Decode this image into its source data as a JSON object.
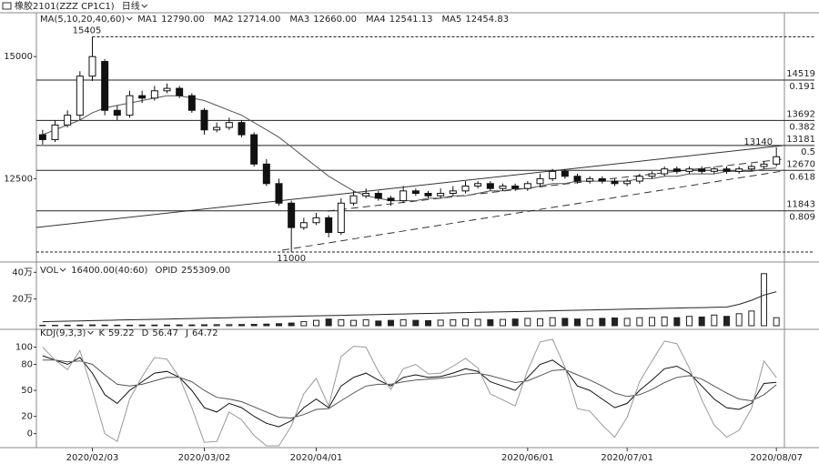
{
  "chart_data": [
    {
      "type": "candlestick",
      "title": "橡胶2101(ZZZ CP1C1)",
      "period": "日线",
      "indicator": "MA(5,10,20,40,60)",
      "readouts": [
        {
          "name": "MA1",
          "value": 12790,
          "label": "12790.00"
        },
        {
          "name": "MA2",
          "value": 12714,
          "label": "12714.00"
        },
        {
          "name": "MA3",
          "value": 12660,
          "label": "12660.00"
        },
        {
          "name": "MA4",
          "value": 12541.13
        },
        {
          "name": "MA5",
          "value": 12454.83
        }
      ],
      "categories": [
        null,
        null,
        null,
        null,
        "2020/02/03",
        null,
        null,
        null,
        null,
        null,
        null,
        null,
        null,
        "2020/03/02",
        null,
        null,
        null,
        null,
        null,
        null,
        null,
        null,
        "2020/04/01",
        null,
        null,
        null,
        null,
        null,
        null,
        null,
        null,
        null,
        null,
        null,
        null,
        null,
        null,
        null,
        null,
        "2020/06/01",
        null,
        null,
        null,
        null,
        null,
        null,
        null,
        "2020/07/01",
        null,
        null,
        null,
        null,
        null,
        null,
        null,
        null,
        null,
        null,
        null,
        "2020/08/07"
      ],
      "open": [
        13400,
        13300,
        13600,
        13800,
        14600,
        14900,
        13900,
        13800,
        14200,
        14150,
        14300,
        14350,
        14200,
        13900,
        13500,
        13550,
        13650,
        13400,
        12800,
        12400,
        12000,
        11500,
        11600,
        11700,
        11400,
        12000,
        12150,
        12200,
        12100,
        12050,
        12250,
        12200,
        12150,
        12200,
        12250,
        12350,
        12400,
        12300,
        12350,
        12300,
        12400,
        12500,
        12650,
        12550,
        12450,
        12500,
        12450,
        12400,
        12450,
        12550,
        12600,
        12700,
        12650,
        12700,
        12650,
        12700,
        12650,
        12700,
        12750,
        12800
      ],
      "high": [
        13500,
        13700,
        13900,
        14700,
        15405,
        14950,
        14000,
        14300,
        14300,
        14400,
        14450,
        14400,
        14250,
        13950,
        13650,
        13750,
        13700,
        13450,
        12900,
        12500,
        12050,
        11700,
        11800,
        11750,
        12100,
        12250,
        12300,
        12250,
        12150,
        12350,
        12300,
        12250,
        12300,
        12350,
        12450,
        12450,
        12450,
        12400,
        12400,
        12450,
        12600,
        12700,
        12700,
        12600,
        12550,
        12550,
        12500,
        12500,
        12600,
        12650,
        12750,
        12750,
        12750,
        12750,
        12750,
        12750,
        12750,
        12800,
        12850,
        13140
      ],
      "low": [
        13200,
        13250,
        13550,
        13700,
        14500,
        13800,
        13700,
        13750,
        14050,
        14100,
        14250,
        14150,
        13850,
        13400,
        13450,
        13500,
        13350,
        12750,
        12350,
        11950,
        11000,
        11450,
        11550,
        11300,
        11350,
        11950,
        12100,
        12050,
        11950,
        12000,
        12150,
        12100,
        12100,
        12150,
        12200,
        12300,
        12250,
        12250,
        12250,
        12250,
        12350,
        12450,
        12500,
        12400,
        12400,
        12400,
        12350,
        12350,
        12400,
        12500,
        12550,
        12600,
        12600,
        12600,
        12600,
        12600,
        12600,
        12650,
        12700,
        12750
      ],
      "close": [
        13300,
        13600,
        13800,
        14600,
        15000,
        13900,
        13800,
        14200,
        14150,
        14300,
        14350,
        14200,
        13900,
        13500,
        13550,
        13650,
        13400,
        12800,
        12400,
        12000,
        11500,
        11600,
        11700,
        11400,
        12000,
        12150,
        12200,
        12100,
        12050,
        12250,
        12200,
        12150,
        12200,
        12250,
        12350,
        12400,
        12300,
        12350,
        12300,
        12400,
        12500,
        12650,
        12550,
        12450,
        12500,
        12450,
        12400,
        12450,
        12550,
        12600,
        12700,
        12650,
        12700,
        12650,
        12700,
        12650,
        12700,
        12750,
        12800,
        12950
      ],
      "ma_line": {
        "color": "#555555",
        "values": [
          13400,
          13500,
          13600,
          13700,
          13850,
          13950,
          14000,
          14050,
          14100,
          14150,
          14200,
          14200,
          14150,
          14100,
          14000,
          13900,
          13800,
          13650,
          13500,
          13350,
          13150,
          12950,
          12750,
          12550,
          12400,
          12250,
          12150,
          12100,
          12050,
          12050,
          12050,
          12100,
          12100,
          12150,
          12150,
          12200,
          12250,
          12250,
          12300,
          12300,
          12350,
          12400,
          12400,
          12450,
          12450,
          12450,
          12450,
          12450,
          12500,
          12500,
          12550,
          12550,
          12600,
          12600,
          12600,
          12650,
          12650,
          12650,
          12700,
          12720
        ]
      },
      "fib_levels": [
        {
          "price": 14519,
          "ratio": 0.191
        },
        {
          "price": 13692,
          "ratio": 0.382
        },
        {
          "price": 13181,
          "ratio": 0.5
        },
        {
          "price": 12670,
          "ratio": 0.618
        },
        {
          "price": 11843,
          "ratio": 0.809
        }
      ],
      "ylim": [
        10850,
        15600
      ],
      "yticks": [
        12500,
        15000
      ]
    },
    {
      "type": "bar",
      "title": "VOL",
      "params": "16400.00(40:60)",
      "readouts": [
        {
          "name": "OPID",
          "value": 255309,
          "label": "255309.00"
        }
      ],
      "series": [
        {
          "name": "VOL",
          "color": "#222222",
          "values": [
            3000,
            3000,
            4000,
            5000,
            6000,
            5000,
            4000,
            4000,
            5000,
            5000,
            5000,
            6000,
            6000,
            7000,
            8000,
            8000,
            9000,
            10000,
            12000,
            15000,
            20000,
            30000,
            40000,
            50000,
            45000,
            40000,
            45000,
            35000,
            40000,
            45000,
            40000,
            38000,
            42000,
            45000,
            50000,
            48000,
            45000,
            47000,
            50000,
            55000,
            52000,
            60000,
            55000,
            50000,
            52000,
            55000,
            58000,
            55000,
            60000,
            62000,
            65000,
            60000,
            70000,
            65000,
            80000,
            70000,
            90000,
            110000,
            390000,
            60000
          ]
        },
        {
          "name": "OPID",
          "color": "#222222",
          "values": [
            30000,
            32000,
            34000,
            36000,
            38000,
            40000,
            42000,
            44000,
            46000,
            48000,
            50000,
            52000,
            54000,
            56000,
            58000,
            60000,
            62000,
            64000,
            66000,
            68000,
            70000,
            72000,
            74000,
            76000,
            78000,
            80000,
            82000,
            84000,
            86000,
            88000,
            90000,
            92000,
            94000,
            96000,
            98000,
            100000,
            102000,
            104000,
            106000,
            108000,
            110000,
            112000,
            114000,
            116000,
            118000,
            120000,
            122000,
            124000,
            126000,
            128000,
            130000,
            132000,
            134000,
            136000,
            138000,
            140000,
            160000,
            190000,
            230000,
            255309
          ]
        }
      ],
      "ylim": [
        0,
        450000
      ],
      "yticks": [
        {
          "value": 200000,
          "label": "20万"
        },
        {
          "value": 400000,
          "label": "40万"
        }
      ]
    },
    {
      "type": "line",
      "title": "KDJ(9,3,3)",
      "series": [
        {
          "name": "K",
          "color": "#111111",
          "values": [
            90,
            85,
            80,
            88,
            70,
            45,
            35,
            50,
            60,
            70,
            72,
            65,
            50,
            30,
            25,
            35,
            30,
            20,
            12,
            8,
            15,
            30,
            40,
            30,
            55,
            65,
            70,
            62,
            55,
            65,
            68,
            65,
            66,
            70,
            75,
            72,
            60,
            55,
            50,
            65,
            80,
            85,
            75,
            55,
            50,
            40,
            30,
            35,
            50,
            62,
            75,
            78,
            70,
            55,
            40,
            30,
            28,
            35,
            58,
            59.22
          ]
        },
        {
          "name": "D",
          "color": "#555555",
          "values": [
            85,
            85,
            83,
            84,
            80,
            68,
            57,
            55,
            57,
            61,
            65,
            65,
            60,
            50,
            42,
            40,
            37,
            31,
            25,
            19,
            18,
            22,
            28,
            29,
            38,
            47,
            55,
            57,
            57,
            60,
            62,
            63,
            64,
            66,
            69,
            70,
            67,
            63,
            59,
            61,
            67,
            73,
            74,
            68,
            62,
            55,
            47,
            43,
            45,
            51,
            59,
            65,
            67,
            63,
            55,
            47,
            40,
            38,
            45,
            56.47
          ]
        },
        {
          "name": "J",
          "color": "#999999",
          "values": [
            100,
            85,
            74,
            96,
            50,
            0,
            -9,
            40,
            66,
            88,
            86,
            65,
            30,
            -10,
            -9,
            25,
            16,
            -2,
            -14,
            -14,
            9,
            46,
            64,
            32,
            89,
            101,
            100,
            72,
            51,
            75,
            80,
            69,
            70,
            78,
            87,
            76,
            46,
            39,
            32,
            73,
            106,
            109,
            77,
            29,
            26,
            10,
            -4,
            19,
            60,
            84,
            107,
            104,
            76,
            39,
            10,
            -4,
            4,
            29,
            84,
            64.72
          ]
        }
      ],
      "ylim": [
        -14,
        110
      ],
      "yticks": [
        0,
        20,
        50,
        80,
        100
      ]
    }
  ]
}
